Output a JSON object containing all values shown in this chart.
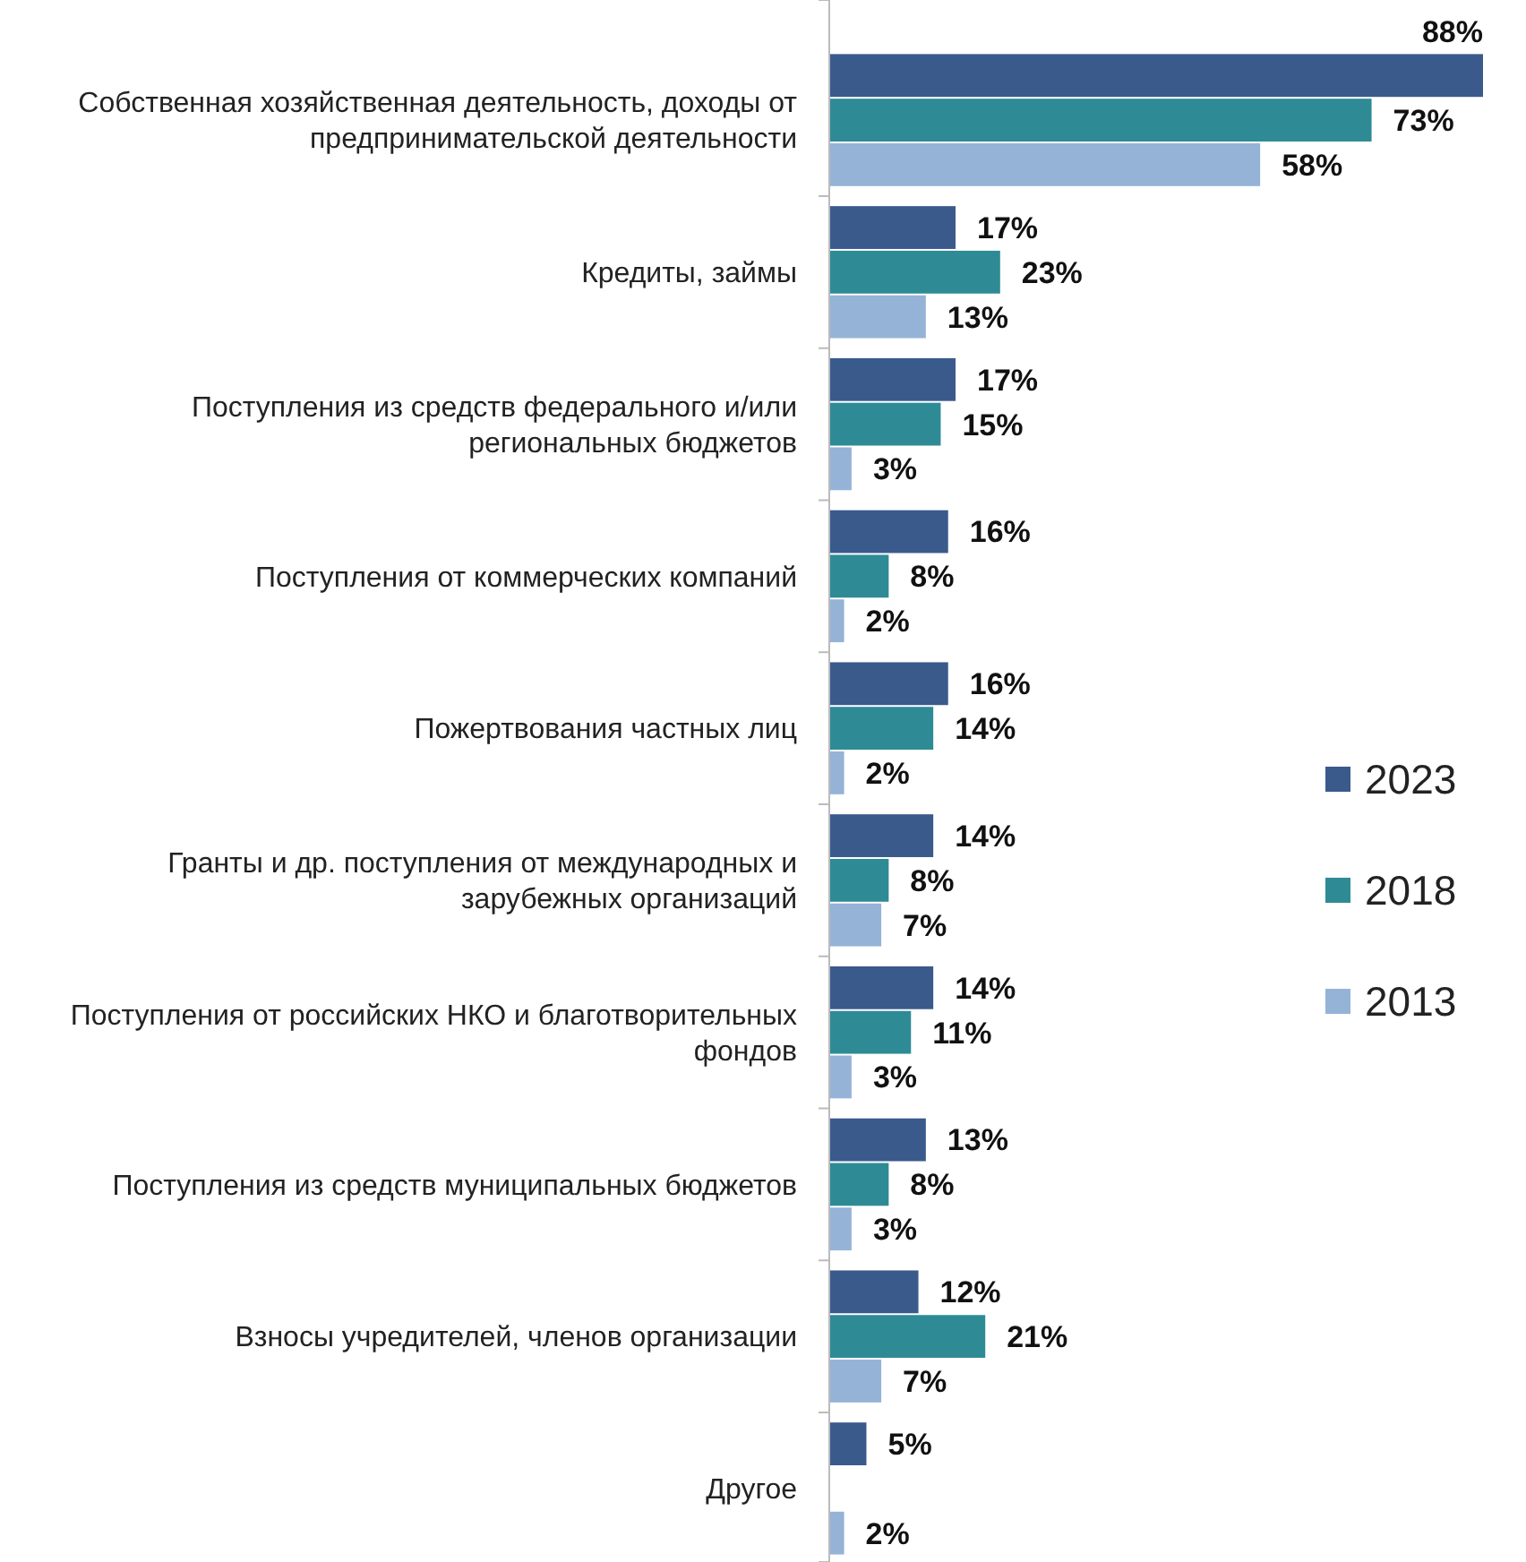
{
  "chart_data": {
    "type": "bar",
    "orientation": "horizontal",
    "categories": [
      "Собственная хозяйственная деятельность, доходы от предпринимательской деятельности",
      "Кредиты, займы",
      "Поступления из средств федерального и/или региональных бюджетов",
      "Поступления от коммерческих компаний",
      "Пожертвования частных лиц",
      "Гранты и др. поступления от международных и зарубежных организаций",
      "Поступления от российских НКО и благотворительных фондов",
      "Поступления из средств муниципальных бюджетов",
      "Взносы учредителей, членов организации",
      "Другое"
    ],
    "series": [
      {
        "name": "2023",
        "color": "#3a5a8c",
        "values": [
          88,
          17,
          17,
          16,
          16,
          14,
          14,
          13,
          12,
          5
        ],
        "value_labels": [
          "88%",
          "17%",
          "17%",
          "16%",
          "16%",
          "14%",
          "14%",
          "13%",
          "12%",
          "5%"
        ]
      },
      {
        "name": "2018",
        "color": "#2e8b96",
        "values": [
          73,
          23,
          15,
          8,
          14,
          8,
          11,
          8,
          21,
          null
        ],
        "value_labels": [
          "73%",
          "23%",
          "15%",
          "8%",
          "14%",
          "8%",
          "11%",
          "8%",
          "21%",
          null
        ]
      },
      {
        "name": "2013",
        "color": "#95b3d7",
        "values": [
          58,
          13,
          3,
          2,
          2,
          7,
          3,
          3,
          7,
          2
        ],
        "value_labels": [
          "58%",
          "13%",
          "3%",
          "2%",
          "2%",
          "7%",
          "3%",
          "3%",
          "7%",
          "2%"
        ]
      }
    ],
    "xlim": [
      0,
      88
    ],
    "tick_labels": false,
    "legend": "right"
  }
}
